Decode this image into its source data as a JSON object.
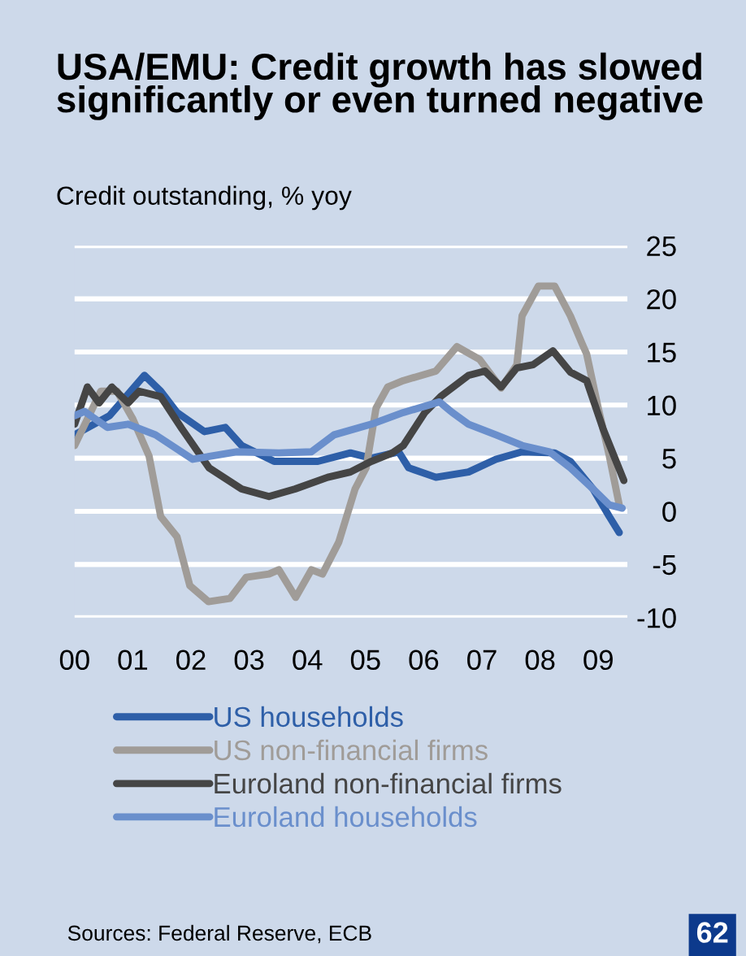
{
  "chart_data": {
    "type": "line",
    "title": "USA/EMU: Credit growth has slowed significantly or even turned negative",
    "subtitle": "Credit outstanding, % yoy",
    "annotations": [
      "Sources: Federal Reserve, ECB",
      "62"
    ],
    "xlim": [
      2000,
      2009.5
    ],
    "xticks": [
      {
        "value": 2000,
        "label": "00"
      },
      {
        "value": 2001,
        "label": "01"
      },
      {
        "value": 2002,
        "label": "02"
      },
      {
        "value": 2003,
        "label": "03"
      },
      {
        "value": 2004,
        "label": "04"
      },
      {
        "value": 2005,
        "label": "05"
      },
      {
        "value": 2006,
        "label": "06"
      },
      {
        "value": 2007,
        "label": "07"
      },
      {
        "value": 2008,
        "label": "08"
      },
      {
        "value": 2009,
        "label": "09"
      }
    ],
    "ylim": [
      -10,
      25
    ],
    "yticks": [
      -10,
      -5,
      0,
      5,
      10,
      15,
      20,
      25
    ],
    "grid": "y",
    "legend": "bottom",
    "line_style": "solid",
    "marker": "none",
    "series": [
      {
        "name": "US households",
        "color": "#2e5fa8",
        "x": [
          2000.0,
          2000.6,
          2001.2,
          2001.48,
          2001.76,
          2002.23,
          2002.59,
          2002.87,
          2003.43,
          2004.18,
          2004.74,
          2005.1,
          2005.57,
          2005.74,
          2006.21,
          2006.77,
          2007.24,
          2007.69,
          2008.25,
          2008.52,
          2008.91,
          2009.19,
          2009.36
        ],
        "values": [
          7.2,
          9.0,
          12.8,
          11.3,
          9.3,
          7.5,
          7.9,
          6.2,
          4.7,
          4.7,
          5.5,
          5.0,
          5.6,
          4.1,
          3.2,
          3.7,
          4.9,
          5.6,
          5.5,
          4.7,
          2.1,
          -0.5,
          -2.0
        ]
      },
      {
        "name": "US non-financial firms",
        "color": "#a09c98",
        "x": [
          2000.0,
          2000.45,
          2000.73,
          2001.0,
          2001.28,
          2001.48,
          2001.76,
          2001.98,
          2002.3,
          2002.67,
          2002.95,
          2003.34,
          2003.51,
          2003.8,
          2004.07,
          2004.26,
          2004.54,
          2004.82,
          2005.01,
          2005.18,
          2005.38,
          2005.65,
          2006.21,
          2006.57,
          2006.96,
          2007.33,
          2007.6,
          2007.69,
          2007.97,
          2008.25,
          2008.52,
          2008.72,
          2008.8,
          2009.0,
          2009.19,
          2009.36
        ],
        "values": [
          6.2,
          11.3,
          11.3,
          8.7,
          5.2,
          -0.5,
          -2.4,
          -7.0,
          -8.5,
          -8.2,
          -6.2,
          -5.9,
          -5.5,
          -8.1,
          -5.5,
          -5.9,
          -2.9,
          2.1,
          4.1,
          9.7,
          11.7,
          12.3,
          13.2,
          15.5,
          14.3,
          11.6,
          13.8,
          18.4,
          21.2,
          21.2,
          18.4,
          15.8,
          14.8,
          9.7,
          5.2,
          0.6
        ]
      },
      {
        "name": "Euroland non-financial firms",
        "color": "#454545",
        "x": [
          2000.0,
          2000.22,
          2000.42,
          2000.64,
          2000.92,
          2001.11,
          2001.48,
          2001.84,
          2002.31,
          2002.87,
          2003.34,
          2003.79,
          2004.35,
          2004.74,
          2005.1,
          2005.46,
          2005.65,
          2006.02,
          2006.29,
          2006.77,
          2007.05,
          2007.33,
          2007.6,
          2007.88,
          2008.22,
          2008.52,
          2008.8,
          2009.08,
          2009.27,
          2009.44
        ],
        "values": [
          8.2,
          11.7,
          10.2,
          11.7,
          10.2,
          11.3,
          10.8,
          7.8,
          4.1,
          2.1,
          1.4,
          2.1,
          3.2,
          3.7,
          4.7,
          5.5,
          6.2,
          9.3,
          10.8,
          12.8,
          13.2,
          11.7,
          13.5,
          13.8,
          15.1,
          13.1,
          12.3,
          7.8,
          5.2,
          2.9
        ]
      },
      {
        "name": "Euroland households",
        "color": "#6a8fcc",
        "x": [
          2000.0,
          2000.17,
          2000.56,
          2000.92,
          2001.39,
          2002.03,
          2002.78,
          2003.51,
          2004.07,
          2004.46,
          2005.1,
          2005.65,
          2006.27,
          2006.49,
          2006.77,
          2007.24,
          2007.69,
          2008.16,
          2008.52,
          2008.91,
          2009.19,
          2009.41
        ],
        "values": [
          9.0,
          9.4,
          7.9,
          8.2,
          7.2,
          4.9,
          5.6,
          5.5,
          5.6,
          7.2,
          8.2,
          9.3,
          10.3,
          9.3,
          8.2,
          7.2,
          6.2,
          5.6,
          4.1,
          2.1,
          0.6,
          0.3
        ]
      }
    ]
  }
}
